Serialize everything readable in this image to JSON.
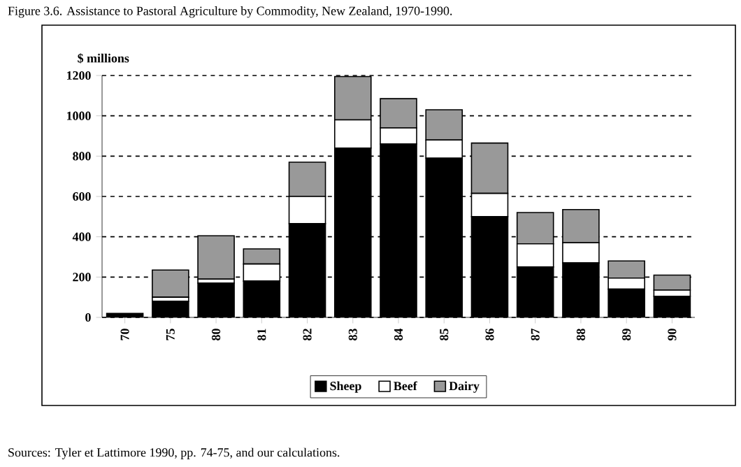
{
  "chart_data": {
    "type": "bar",
    "stacked": true,
    "title": "Figure 3.6. Assistance to Pastoral Agriculture by Commodity, New Zealand, 1970-1990.",
    "ylabel": "$ millions",
    "categories": [
      "70",
      "75",
      "80",
      "81",
      "82",
      "83",
      "84",
      "85",
      "86",
      "87",
      "88",
      "89",
      "90"
    ],
    "series": [
      {
        "name": "Sheep",
        "color": "#000000",
        "values": [
          20,
          80,
          170,
          180,
          465,
          840,
          860,
          790,
          500,
          250,
          270,
          140,
          105
        ]
      },
      {
        "name": "Beef",
        "color": "#ffffff",
        "values": [
          0,
          20,
          20,
          85,
          135,
          140,
          80,
          90,
          115,
          115,
          100,
          55,
          30
        ]
      },
      {
        "name": "Dairy",
        "color": "#999999",
        "values": [
          0,
          135,
          215,
          75,
          170,
          215,
          145,
          150,
          250,
          155,
          165,
          85,
          75
        ]
      }
    ],
    "ylim": [
      0,
      1200
    ],
    "yticks": [
      0,
      200,
      400,
      600,
      800,
      1000,
      1200
    ],
    "grid": "y",
    "legend": "bottom",
    "annotations": [
      "Sources: Tyler et Lattimore 1990, pp. 74-75, and our calculations."
    ]
  }
}
